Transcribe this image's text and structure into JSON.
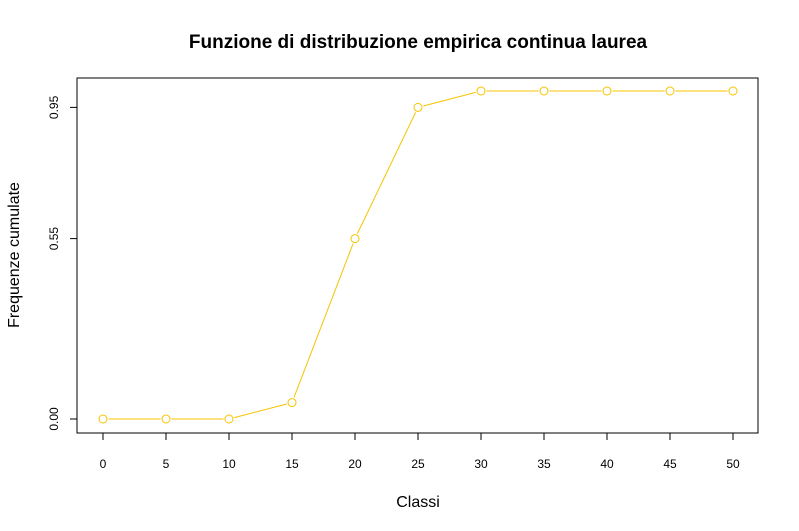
{
  "chart_data": {
    "type": "line",
    "title": "Funzione di distribuzione empirica continua laurea",
    "xlabel": "Classi",
    "ylabel": "Frequenze cumulate",
    "x": [
      0,
      5,
      10,
      15,
      20,
      25,
      30,
      35,
      40,
      45,
      50
    ],
    "series": [
      {
        "values": [
          0.0,
          0.0,
          0.0,
          0.05,
          0.55,
          0.95,
          1.0,
          1.0,
          1.0,
          1.0,
          1.0
        ]
      }
    ],
    "x_ticks": [
      "0",
      "5",
      "10",
      "15",
      "20",
      "25",
      "30",
      "35",
      "40",
      "45",
      "50"
    ],
    "y_ticks": [
      "0.00",
      "0.55",
      "0.95"
    ],
    "y_tick_values": [
      0.0,
      0.55,
      0.95
    ],
    "xlim": [
      0,
      50
    ],
    "ylim": [
      0,
      1.0
    ],
    "grid": false,
    "line_color": "#f5c400"
  }
}
